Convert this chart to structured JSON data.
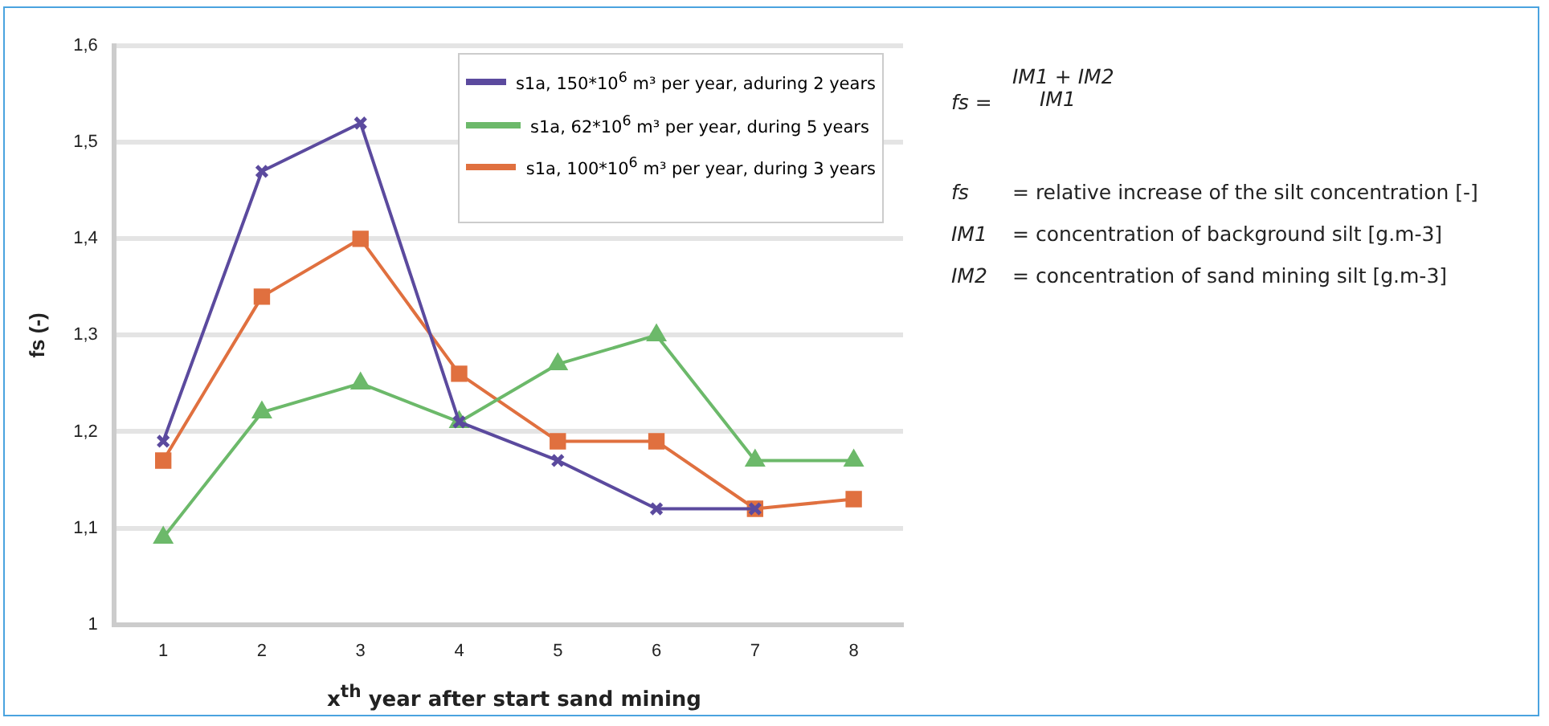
{
  "chart_data": {
    "type": "line",
    "xlabel": "x$^{th}$ year after start sand mining",
    "ylabel": "fs (-)",
    "categories": [
      "1",
      "2",
      "3",
      "4",
      "5",
      "6",
      "7",
      "8"
    ],
    "series": [
      {
        "name": "s1a, 150*10$^{6}$ m³ per year, aduring 2 years",
        "color": "#5b4a9e",
        "marker": "cross",
        "values": [
          1.19,
          1.47,
          1.52,
          1.21,
          1.17,
          1.12,
          1.12,
          null
        ]
      },
      {
        "name": "s1a, 62*10$^{6}$ m³ per year, during 5 years",
        "color": "#6cb96a",
        "marker": "triangle",
        "values": [
          1.09,
          1.22,
          1.25,
          1.21,
          1.27,
          1.3,
          1.17,
          1.17
        ]
      },
      {
        "name": "s1a, 100*10$^{6}$ m³ per year, during 3 years",
        "color": "#e0703f",
        "marker": "square",
        "values": [
          1.17,
          1.34,
          1.4,
          1.26,
          1.19,
          1.19,
          1.12,
          1.13
        ]
      }
    ],
    "ylim": [
      1,
      1.6
    ],
    "yticks": [
      1,
      {
        "value": 1.1,
        "label": "1,1"
      },
      {
        "value": 1.2,
        "label": "1,2"
      },
      {
        "value": 1.3,
        "label": "1,3"
      },
      {
        "value": 1.4,
        "label": "1,4"
      },
      {
        "value": 1.5,
        "label": "1,5"
      },
      {
        "value": 1.6,
        "label": "1,6"
      }
    ],
    "grid": "y",
    "legend": "top right",
    "annotations": [
      "fs =",
      "IM1 + IM2",
      "IM1",
      "fs",
      "= relative increase of the silt concentration [-]",
      "IM1",
      "= concentration of background silt [g.m-3]",
      "IM2",
      "= concentration of sand mining silt [g.m-3]"
    ]
  }
}
